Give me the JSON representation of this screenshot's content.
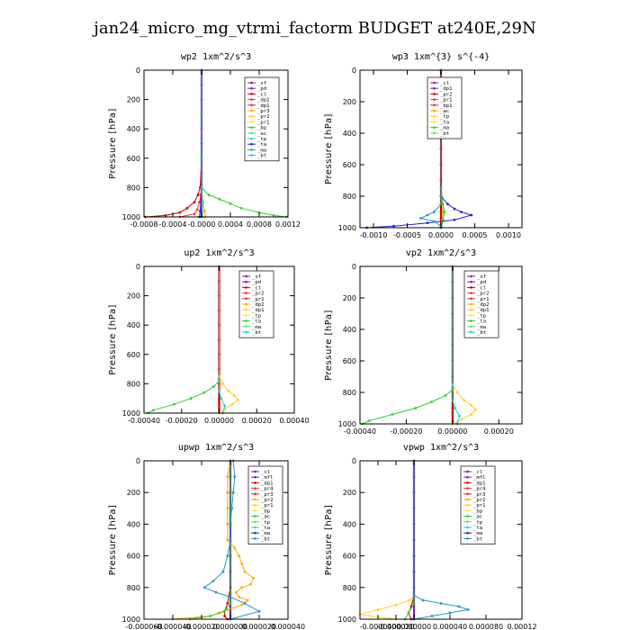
{
  "title": "jan24_micro_mg_vtrmi_factorm  BUDGET at240E,29N",
  "chart_data": [
    {
      "type": "line",
      "title": "wp2  1xm^2/s^3",
      "ylabel": "Pressure [hPa]",
      "xlim": [
        -0.0008,
        0.0012
      ],
      "ylim": [
        1000,
        0
      ],
      "xticks": [
        "-0.0008",
        "-0.0004",
        "-0.0000",
        "0.0004",
        "0.0008",
        "0.0012"
      ],
      "xtick_values": [
        -0.0008,
        -0.0004,
        0.0,
        0.0004,
        0.0008,
        0.0012
      ],
      "yticks": [
        "0",
        "200",
        "400",
        "600",
        "800",
        "1000"
      ],
      "ytick_values": [
        0,
        200,
        400,
        600,
        800,
        1000
      ],
      "legend": [
        "_sf",
        "_pd",
        "_cl",
        "_dp2",
        "_dp1",
        "_pr3",
        "_pr2",
        "_pr1",
        "_bp",
        "_ac",
        "_tp",
        "_ta",
        "_ma",
        "_bt"
      ],
      "series": [
        {
          "name": "_sf",
          "color": "#7a1fa2",
          "pressure": [
            0,
            100,
            200,
            300,
            400,
            500,
            600,
            700,
            800,
            900,
            960,
            1000
          ],
          "values": [
            0,
            0,
            0,
            0,
            0,
            0,
            0,
            0,
            0,
            0,
            0,
            0
          ]
        },
        {
          "name": "_pd",
          "color": "#cc0000",
          "pressure": [
            0,
            300,
            600,
            800,
            850,
            900,
            940,
            970,
            990,
            1000
          ],
          "values": [
            0,
            0,
            0,
            -2e-05,
            -5e-05,
            -0.0001,
            -0.0002,
            -0.0003,
            -0.0005,
            -0.00078
          ]
        },
        {
          "name": "_cl",
          "color": "#ff3030",
          "pressure": [
            0,
            400,
            800,
            850,
            900,
            950,
            980,
            1000
          ],
          "values": [
            0,
            0,
            0,
            -1e-05,
            -3e-05,
            -6e-05,
            -0.0001,
            -0.0003
          ]
        },
        {
          "name": "_dp2",
          "color": "#ffaa00",
          "pressure": [
            0,
            800,
            900,
            960,
            1000
          ],
          "values": [
            0,
            0,
            2e-05,
            4e-05,
            5e-05
          ]
        },
        {
          "name": "_bp",
          "color": "#33cc33",
          "pressure": [
            0,
            300,
            600,
            800,
            850,
            880,
            910,
            940,
            970,
            990,
            1000
          ],
          "values": [
            0,
            0,
            0,
            0,
            0.0001,
            0.00025,
            0.0004,
            0.00055,
            0.0008,
            0.001,
            0.00118
          ]
        },
        {
          "name": "_ta",
          "color": "#2222cc",
          "pressure": [
            0,
            800,
            900,
            960,
            1000
          ],
          "values": [
            0,
            0,
            -1e-05,
            -2e-05,
            -3e-05
          ]
        },
        {
          "name": "_bt",
          "color": "#22cccc",
          "pressure": [
            0,
            800,
            900,
            1000
          ],
          "values": [
            0,
            0,
            1e-05,
            1e-05
          ]
        }
      ]
    },
    {
      "type": "line",
      "title": "wp3  1xm^{3} s^{-4}",
      "ylabel": "Pressure [hPa]",
      "xlim": [
        -0.0012,
        0.0012
      ],
      "ylim": [
        1000,
        0
      ],
      "xticks": [
        "-0.0010",
        "-0.0005",
        "0.0000",
        "0.0005",
        "0.0010"
      ],
      "xtick_values": [
        -0.001,
        -0.0005,
        0.0,
        0.0005,
        0.001
      ],
      "yticks": [
        "0",
        "200",
        "400",
        "600",
        "800",
        "1000"
      ],
      "ytick_values": [
        0,
        200,
        400,
        600,
        800,
        1000
      ],
      "legend": [
        "_cl",
        "_dp1",
        "_pr2",
        "_pr1",
        "_bp1",
        "_ac",
        "_tp",
        "_ta",
        "_ma",
        "_bt"
      ],
      "series": [
        {
          "name": "_dp1",
          "color": "#cc0000",
          "pressure": [
            0,
            100,
            200,
            300,
            400,
            500,
            600,
            700,
            800,
            900,
            1000
          ],
          "values": [
            0,
            0,
            0,
            0,
            0,
            0,
            0,
            0,
            0,
            0,
            0
          ]
        },
        {
          "name": "_pr2",
          "color": "#ffaa00",
          "pressure": [
            0,
            750,
            850,
            900,
            950,
            1000
          ],
          "values": [
            0,
            0,
            2e-05,
            3e-05,
            2e-05,
            0
          ]
        },
        {
          "name": "_bp1",
          "color": "#33cc33",
          "pressure": [
            0,
            750,
            850,
            900,
            950,
            1000
          ],
          "values": [
            0,
            0,
            3e-05,
            5e-05,
            3e-05,
            0
          ]
        },
        {
          "name": "_tp",
          "color": "#2222cc",
          "pressure": [
            0,
            800,
            850,
            880,
            900,
            920,
            950,
            970,
            990,
            1000
          ],
          "values": [
            0,
            0,
            0.0001,
            0.0002,
            0.0003,
            0.00045,
            0.0002,
            -0.0002,
            -0.0007,
            -0.0011
          ]
        },
        {
          "name": "_ma",
          "color": "#2299bb",
          "pressure": [
            0,
            800,
            850,
            900,
            920,
            940,
            960,
            990,
            1000
          ],
          "values": [
            0,
            0,
            0,
            -0.0001,
            -0.0002,
            -0.0003,
            -0.0001,
            0,
            0
          ]
        }
      ]
    },
    {
      "type": "line",
      "title": "up2  1xm^2/s^3",
      "ylabel": "Pressure [hPa]",
      "xlim": [
        -0.0004,
        0.0004
      ],
      "ylim": [
        1000,
        0
      ],
      "xticks": [
        "-0.00040",
        "-0.00020",
        "0.00000",
        "0.00020",
        "0.00040"
      ],
      "xtick_values": [
        -0.0004,
        -0.0002,
        0.0,
        0.0002,
        0.0004
      ],
      "yticks": [
        "0",
        "200",
        "400",
        "600",
        "800",
        "1000"
      ],
      "ytick_values": [
        0,
        200,
        400,
        600,
        800,
        1000
      ],
      "legend": [
        "_sf",
        "_pd",
        "_cl",
        "_pr2",
        "_pr1",
        "_dp2",
        "_dp1",
        "_tp",
        "_ta",
        "_ma",
        "_bt"
      ],
      "series": [
        {
          "name": "_pd",
          "color": "#cc0000",
          "pressure": [
            0,
            100,
            200,
            300,
            400,
            500,
            600,
            700,
            800,
            900,
            1000
          ],
          "values": [
            0,
            0,
            0,
            0,
            0,
            0,
            0,
            0,
            0,
            0,
            0
          ]
        },
        {
          "name": "_pr2",
          "color": "#ffcc33",
          "pressure": [
            0,
            750,
            800,
            850,
            880,
            910,
            940,
            970,
            1000
          ],
          "values": [
            0,
            0,
            2e-05,
            5e-05,
            8e-05,
            0.0001,
            7e-05,
            3e-05,
            0
          ]
        },
        {
          "name": "_dp2",
          "color": "#33cc33",
          "pressure": [
            0,
            780,
            820,
            860,
            900,
            940,
            980,
            1000
          ],
          "values": [
            0,
            0,
            -3e-05,
            -8e-05,
            -0.00015,
            -0.00024,
            -0.00035,
            -0.00038
          ]
        },
        {
          "name": "_tp",
          "color": "#22cccc",
          "pressure": [
            0,
            850,
            900,
            950,
            1000
          ],
          "values": [
            0,
            0,
            1e-05,
            3e-05,
            2e-05
          ]
        }
      ]
    },
    {
      "type": "line",
      "title": "vp2  1xm^2/s^3",
      "ylabel": "Pressure [hPa]",
      "xlim": [
        -0.0004,
        0.0003
      ],
      "ylim": [
        1000,
        0
      ],
      "xticks": [
        "-0.00040",
        "-0.00020",
        "0.00000",
        "0.00020"
      ],
      "xtick_values": [
        -0.0004,
        -0.0002,
        0.0,
        0.0002
      ],
      "yticks": [
        "0",
        "200",
        "400",
        "600",
        "800",
        "1000"
      ],
      "ytick_values": [
        0,
        200,
        400,
        600,
        800,
        1000
      ],
      "legend": [
        "_sf",
        "_pd",
        "_cl",
        "_pr2",
        "_pr1",
        "_dp2",
        "_dp1",
        "_tp",
        "_ta",
        "_ma",
        "_bt"
      ],
      "series": [
        {
          "name": "_pd",
          "color": "#cc0000",
          "pressure": [
            0,
            100,
            200,
            300,
            400,
            500,
            600,
            700,
            800,
            900,
            1000
          ],
          "values": [
            0,
            0,
            0,
            0,
            0,
            0,
            0,
            0,
            0,
            0,
            0
          ]
        },
        {
          "name": "_pr2",
          "color": "#ffcc33",
          "pressure": [
            0,
            750,
            800,
            850,
            880,
            910,
            940,
            970,
            1000
          ],
          "values": [
            0,
            0,
            2e-05,
            5e-05,
            8e-05,
            0.0001,
            8e-05,
            4e-05,
            0
          ]
        },
        {
          "name": "_dp2",
          "color": "#33cc33",
          "pressure": [
            0,
            780,
            820,
            860,
            900,
            940,
            980,
            1000
          ],
          "values": [
            0,
            0,
            -3e-05,
            -9e-05,
            -0.00016,
            -0.00026,
            -0.00036,
            -0.00039
          ]
        },
        {
          "name": "_tp",
          "color": "#22cccc",
          "pressure": [
            0,
            850,
            900,
            950,
            1000
          ],
          "values": [
            0,
            0,
            1e-05,
            3e-05,
            2e-05
          ]
        }
      ]
    },
    {
      "type": "line",
      "title": "upwp  1xm^2/s^3",
      "ylabel": "Pressure [hPa]",
      "xlim": [
        -6e-05,
        4e-05
      ],
      "ylim": [
        1000,
        0
      ],
      "xticks": [
        "-0.000060",
        "-0.000040",
        "-0.000020",
        "0.000000",
        "0.000020",
        "0.000040"
      ],
      "xtick_values": [
        -6e-05,
        -4e-05,
        -2e-05,
        0.0,
        2e-05,
        4e-05
      ],
      "yticks": [
        "0",
        "200",
        "400",
        "600",
        "800",
        "1000"
      ],
      "ytick_values": [
        0,
        200,
        400,
        600,
        800,
        1000
      ],
      "legend": [
        "_cl",
        "_mfl",
        "_dp1",
        "_pr4",
        "_pr3",
        "_pr2",
        "_pr1",
        "_bp",
        "_ac",
        "_tp",
        "_ta",
        "_ma",
        "_bt"
      ],
      "series": [
        {
          "name": "_cl",
          "color": "#7a1fa2",
          "pressure": [
            0,
            100,
            200,
            300,
            400,
            500,
            600,
            700,
            800,
            900,
            1000
          ],
          "values": [
            0,
            0,
            0,
            0,
            0,
            0,
            0,
            0,
            0,
            0,
            0
          ]
        },
        {
          "name": "_dp1",
          "color": "#cc0000",
          "pressure": [
            0,
            800,
            900,
            950,
            980,
            1000
          ],
          "values": [
            0,
            0,
            -2e-06,
            -4e-06,
            -4e-06,
            -2e-06
          ]
        },
        {
          "name": "_pr3",
          "color": "#ffaa00",
          "pressure": [
            0,
            100,
            200,
            300,
            400,
            500,
            550,
            600,
            650,
            700,
            740,
            780,
            800,
            830,
            860,
            880,
            910,
            940,
            960,
            980,
            1000
          ],
          "values": [
            0,
            -2e-06,
            -2e-06,
            -2e-06,
            -2e-06,
            -2e-06,
            3e-06,
            6e-06,
            8e-06,
            1e-05,
            1.6e-05,
            1.4e-05,
            8e-06,
            4e-06,
            6e-06,
            1.2e-05,
            8e-06,
            -2e-06,
            -8e-06,
            -1.4e-05,
            -4e-05
          ]
        },
        {
          "name": "_bp",
          "color": "#33cc33",
          "pressure": [
            0,
            900,
            950,
            980,
            1000
          ],
          "values": [
            0,
            0,
            -4e-06,
            -1.4e-05,
            -2.8e-05
          ]
        },
        {
          "name": "_ma",
          "color": "#2299bb",
          "pressure": [
            0,
            100,
            200,
            300,
            400,
            500,
            600,
            700,
            760,
            800,
            830,
            860,
            900,
            950,
            1000
          ],
          "values": [
            2e-06,
            3e-06,
            2e-06,
            1e-06,
            0,
            0,
            -2e-06,
            -5e-06,
            -1.2e-05,
            -1.8e-05,
            -1e-05,
            0,
            1e-05,
            2e-05,
            0
          ]
        }
      ]
    },
    {
      "type": "line",
      "title": "vpwp  1xm^2/s^3",
      "ylabel": "Pressure [hPa]",
      "xlim": [
        -6e-05,
        0.00012
      ],
      "ylim": [
        1000,
        0
      ],
      "xticks": [
        "-0.000040",
        "-0.000020",
        "0.000000",
        "0.000040",
        "0.000080",
        "0.00012"
      ],
      "xtick_values": [
        -4e-05,
        -2e-05,
        0.0,
        4e-05,
        8e-05,
        0.00012
      ],
      "yticks": [
        "0",
        "200",
        "400",
        "600",
        "800",
        "1000"
      ],
      "ytick_values": [
        0,
        200,
        400,
        600,
        800,
        1000
      ],
      "legend": [
        "_cl",
        "_mfl",
        "_dp1",
        "_pr4",
        "_pr3",
        "_pr2",
        "_pr1",
        "_bp",
        "_ac",
        "_tp",
        "_ta",
        "_ma",
        "_bt"
      ],
      "series": [
        {
          "name": "_cl",
          "color": "#7a1fa2",
          "pressure": [
            0,
            100,
            200,
            300,
            400,
            500,
            600,
            700,
            800,
            900,
            1000
          ],
          "values": [
            0,
            0,
            0,
            0,
            0,
            0,
            0,
            0,
            0,
            0,
            0
          ]
        },
        {
          "name": "_dp1",
          "color": "#cc0000",
          "pressure": [
            0,
            850,
            920,
            960,
            1000
          ],
          "values": [
            0,
            0,
            -3e-06,
            -6e-06,
            -3e-06
          ]
        },
        {
          "name": "_pr3",
          "color": "#ffcc33",
          "pressure": [
            0,
            850,
            880,
            910,
            940,
            970,
            1000
          ],
          "values": [
            0,
            0,
            -5e-06,
            -2e-05,
            -4e-05,
            -6e-05,
            -2e-05
          ]
        },
        {
          "name": "_bp",
          "color": "#33cc33",
          "pressure": [
            0,
            900,
            960,
            1000
          ],
          "values": [
            0,
            0,
            -6e-06,
            -1e-05
          ]
        },
        {
          "name": "_ma",
          "color": "#2299bb",
          "pressure": [
            0,
            850,
            880,
            900,
            920,
            940,
            960,
            980,
            1000
          ],
          "values": [
            0,
            0,
            1e-05,
            3e-05,
            5e-05,
            6e-05,
            4e-05,
            2e-05,
            0
          ]
        }
      ]
    }
  ]
}
